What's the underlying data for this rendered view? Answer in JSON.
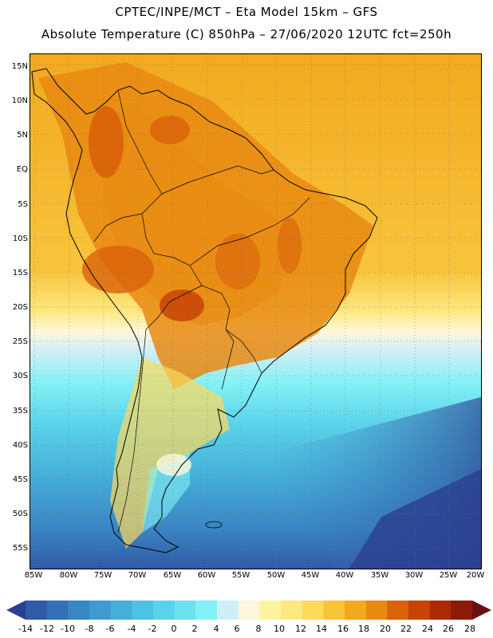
{
  "header": {
    "title_line1": "CPTEC/INPE/MCT –  Eta Model 15km – GFS",
    "title_line2": "Absolute Temperature (C) 850hPa – 27/06/2020 12UTC fct=250h"
  },
  "map": {
    "lat_labels": [
      "15N",
      "10N",
      "5N",
      "EQ",
      "5S",
      "10S",
      "15S",
      "20S",
      "25S",
      "30S",
      "35S",
      "40S",
      "45S",
      "50S",
      "55S"
    ],
    "lon_labels": [
      "85W",
      "80W",
      "75W",
      "70W",
      "65W",
      "60W",
      "55W",
      "50W",
      "45W",
      "40W",
      "35W",
      "30W",
      "25W",
      "20W"
    ]
  },
  "colorbar": {
    "labels": [
      "-14",
      "-12",
      "-10",
      "-8",
      "-6",
      "-4",
      "-2",
      "0",
      "2",
      "4",
      "6",
      "8",
      "10",
      "12",
      "14",
      "16",
      "18",
      "20",
      "22",
      "24",
      "26",
      "28"
    ],
    "colors": [
      "#2b3f8f",
      "#2f5aa6",
      "#3370b5",
      "#3a86c4",
      "#3f9bcf",
      "#46afd9",
      "#4dc2e2",
      "#5ad3ea",
      "#6be2f0",
      "#83f1f6",
      "#cdeff7",
      "#fff6dc",
      "#fff3a0",
      "#fee880",
      "#fdd95c",
      "#f8c43c",
      "#f2a91e",
      "#e88a12",
      "#d9620a",
      "#c84306",
      "#ad2a05",
      "#8c1a08",
      "#6b1010"
    ]
  }
}
